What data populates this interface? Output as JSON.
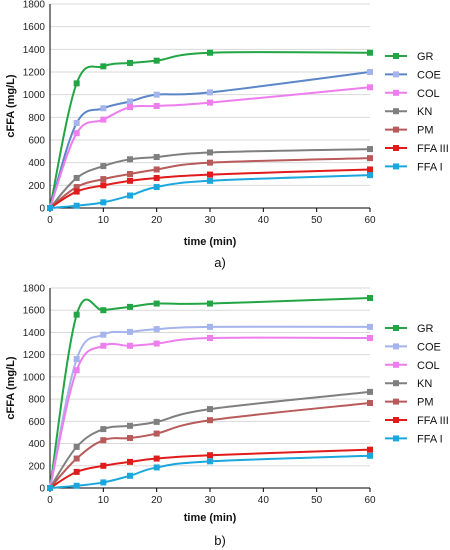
{
  "chart_data": [
    {
      "type": "line",
      "panel_label": "a)",
      "xlabel": "time (min)",
      "ylabel": "cFFA (mg/L)",
      "xlim": [
        0,
        60
      ],
      "ylim": [
        0,
        1800
      ],
      "xticks": [
        0,
        10,
        20,
        30,
        40,
        50,
        60
      ],
      "yticks": [
        0,
        200,
        400,
        600,
        800,
        1000,
        1200,
        1400,
        1600,
        1800
      ],
      "grid": "horizontal",
      "legend_position": "right",
      "x": [
        0,
        5,
        10,
        15,
        20,
        30,
        60
      ],
      "series": [
        {
          "name": "GR",
          "color": "#22a544",
          "values": [
            0,
            1100,
            1250,
            1280,
            1300,
            1370,
            1370
          ]
        },
        {
          "name": "COE",
          "color": "#5b86c7",
          "marker_color": "#a5b4ec",
          "values": [
            0,
            750,
            880,
            940,
            1000,
            1020,
            1200
          ]
        },
        {
          "name": "COL",
          "color": "#ee7ded",
          "values": [
            0,
            660,
            780,
            890,
            900,
            930,
            1065
          ]
        },
        {
          "name": "KN",
          "color": "#7f7f7f",
          "values": [
            0,
            265,
            370,
            430,
            450,
            490,
            520
          ]
        },
        {
          "name": "PM",
          "color": "#b95a5a",
          "values": [
            0,
            185,
            255,
            300,
            340,
            400,
            440
          ]
        },
        {
          "name": "FFA III",
          "color": "#e11b1b",
          "values": [
            0,
            145,
            200,
            240,
            265,
            295,
            340
          ]
        },
        {
          "name": "FFA I",
          "color": "#1aa7dd",
          "values": [
            0,
            20,
            50,
            110,
            185,
            240,
            290
          ]
        }
      ]
    },
    {
      "type": "line",
      "panel_label": "b)",
      "xlabel": "time (min)",
      "ylabel": "cFFA (mg/L)",
      "xlim": [
        0,
        60
      ],
      "ylim": [
        0,
        1800
      ],
      "xticks": [
        0,
        10,
        20,
        30,
        40,
        50,
        60
      ],
      "yticks": [
        0,
        200,
        400,
        600,
        800,
        1000,
        1200,
        1400,
        1600,
        1800
      ],
      "grid": "horizontal",
      "legend_position": "right",
      "x": [
        0,
        5,
        10,
        15,
        20,
        30,
        60
      ],
      "series": [
        {
          "name": "GR",
          "color": "#22a544",
          "values": [
            0,
            1560,
            1600,
            1630,
            1660,
            1660,
            1710
          ]
        },
        {
          "name": "COE",
          "color": "#a5b4ec",
          "values": [
            0,
            1160,
            1380,
            1405,
            1430,
            1450,
            1450
          ]
        },
        {
          "name": "COL",
          "color": "#ee7ded",
          "values": [
            0,
            1060,
            1280,
            1280,
            1300,
            1350,
            1350
          ]
        },
        {
          "name": "KN",
          "color": "#7f7f7f",
          "values": [
            0,
            370,
            530,
            560,
            595,
            710,
            865
          ]
        },
        {
          "name": "PM",
          "color": "#b95a5a",
          "values": [
            0,
            265,
            430,
            450,
            490,
            610,
            765
          ]
        },
        {
          "name": "FFA III",
          "color": "#e11b1b",
          "values": [
            0,
            145,
            200,
            235,
            265,
            295,
            345
          ]
        },
        {
          "name": "FFA I",
          "color": "#1aa7dd",
          "values": [
            0,
            20,
            50,
            110,
            185,
            240,
            290
          ]
        }
      ]
    }
  ]
}
